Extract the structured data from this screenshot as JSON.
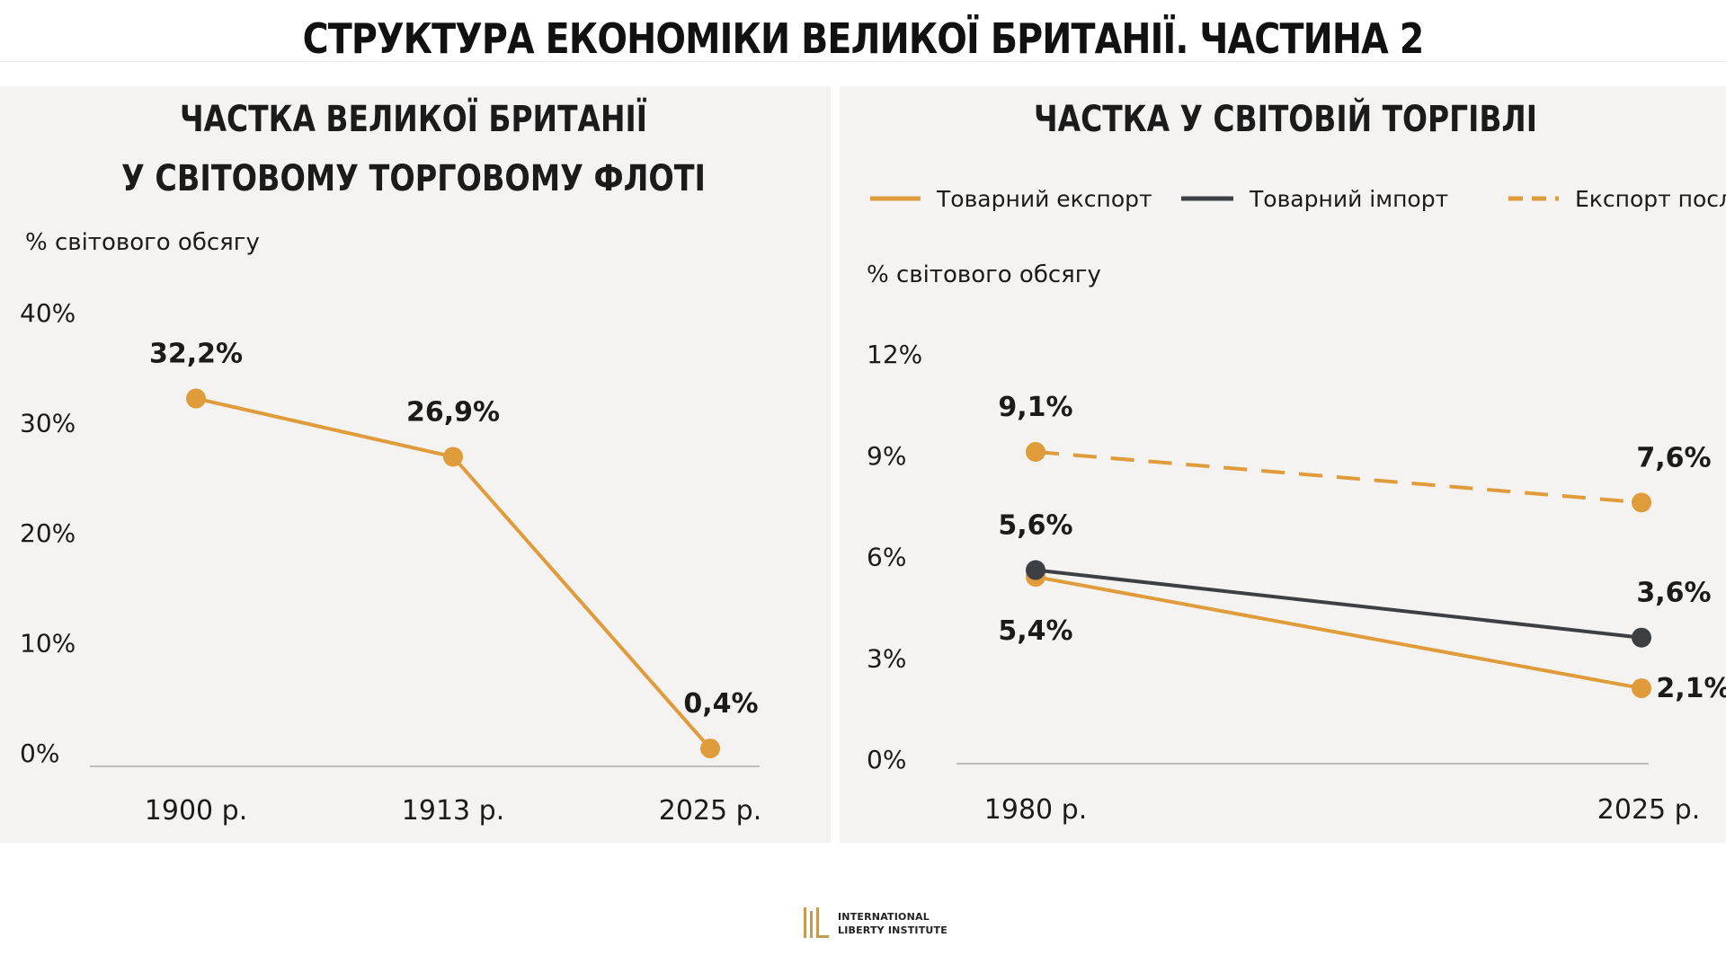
{
  "page_title": "СТРУКТУРА ЕКОНОМІКИ ВЕЛИКОЇ БРИТАНІЇ. ЧАСТИНА 2",
  "colors": {
    "orange": "#e09b3a",
    "dark": "#3d3f42",
    "axis": "#bdbdbd",
    "text": "#1b1b1b",
    "panel_bg": "#f4f3f1"
  },
  "chart_data": [
    {
      "type": "line",
      "title_lines": [
        "ЧАСТКА ВЕЛИКОЇ БРИТАНІЇ",
        "У СВІТОВОМУ ТОРГОВОМУ ФЛОТІ"
      ],
      "ylabel": "% світового обсягу",
      "categories": [
        "1900 р.",
        "1913 р.",
        "2025 р."
      ],
      "yticks": [
        "0%",
        "10%",
        "20%",
        "30%",
        "40%"
      ],
      "ylim": [
        0,
        40
      ],
      "series": [
        {
          "values": [
            32.2,
            26.9,
            0.4
          ],
          "labels": [
            "32,2%",
            "26,9%",
            "0,4%"
          ],
          "color": "#e09b3a",
          "style": "solid"
        }
      ]
    },
    {
      "type": "line",
      "title_lines": [
        "ЧАСТКА У СВІТОВІЙ ТОРГІВЛІ"
      ],
      "ylabel": "% світового обсягу",
      "legend_position": "top",
      "categories": [
        "1980 р.",
        "2025 р."
      ],
      "yticks": [
        "0%",
        "3%",
        "6%",
        "9%",
        "12%"
      ],
      "ylim": [
        0,
        12
      ],
      "series": [
        {
          "name": "Товарний експорт",
          "values": [
            5.4,
            2.1
          ],
          "labels": [
            "5,4%",
            "2,1%"
          ],
          "color": "#e09b3a",
          "style": "solid"
        },
        {
          "name": "Товарний імпорт",
          "values": [
            5.6,
            3.6
          ],
          "labels": [
            "5,6%",
            "3,6%"
          ],
          "color": "#3d3f42",
          "style": "solid"
        },
        {
          "name": "Експорт послуг",
          "values": [
            9.1,
            7.6
          ],
          "labels": [
            "9,1%",
            "7,6%"
          ],
          "color": "#e09b3a",
          "style": "dashed"
        }
      ]
    }
  ],
  "footer": {
    "logo_line1": "INTERNATIONAL",
    "logo_line2": "LIBERTY INSTITUTE"
  }
}
